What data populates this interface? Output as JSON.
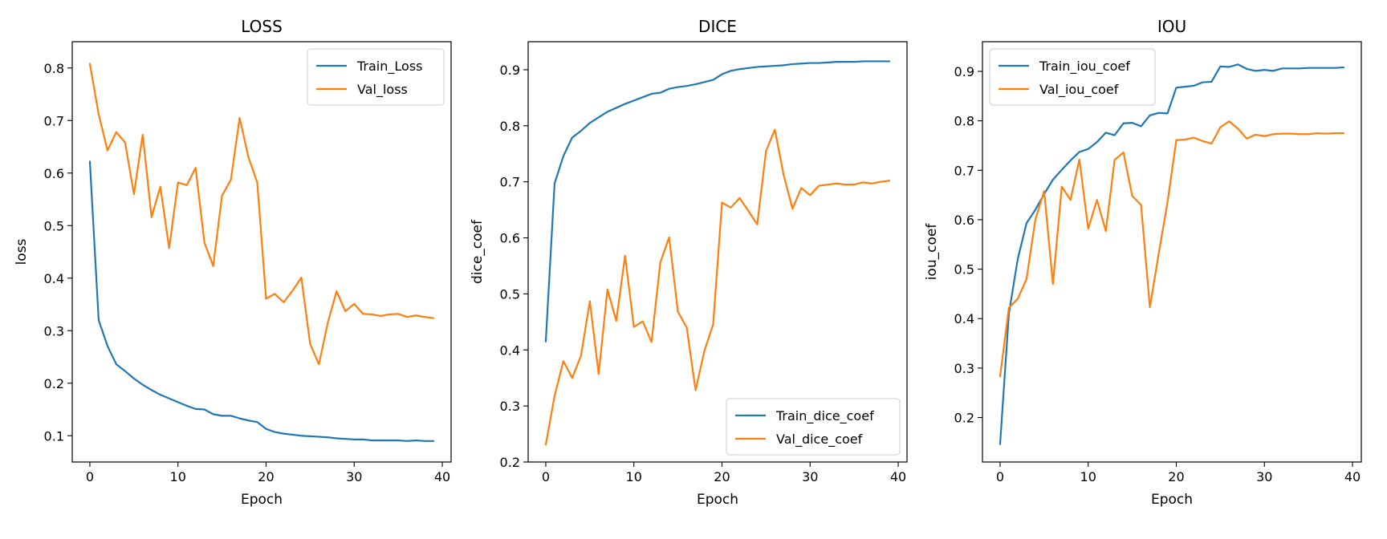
{
  "chart_data": [
    {
      "type": "line",
      "title": "LOSS",
      "xlabel": "Epoch",
      "ylabel": "loss",
      "xlim": [
        -2,
        41
      ],
      "ylim": [
        0.05,
        0.85
      ],
      "xticks": [
        0,
        10,
        20,
        30,
        40
      ],
      "yticks": [
        0.1,
        0.2,
        0.3,
        0.4,
        0.5,
        0.6,
        0.7,
        0.8
      ],
      "ytick_labels": [
        "0.1",
        "0.2",
        "0.3",
        "0.4",
        "0.5",
        "0.6",
        "0.7",
        "0.8"
      ],
      "legend_position": "top-right",
      "grid": false,
      "x": [
        0,
        1,
        2,
        3,
        4,
        5,
        6,
        7,
        8,
        9,
        10,
        11,
        12,
        13,
        14,
        15,
        16,
        17,
        18,
        19,
        20,
        21,
        22,
        23,
        24,
        25,
        26,
        27,
        28,
        29,
        30,
        31,
        32,
        33,
        34,
        35,
        36,
        37,
        38,
        39
      ],
      "series": [
        {
          "name": "Train_Loss",
          "color": "#1f77b4",
          "values": [
            0.622,
            0.32,
            0.271,
            0.236,
            0.223,
            0.209,
            0.197,
            0.187,
            0.178,
            0.171,
            0.164,
            0.157,
            0.151,
            0.15,
            0.141,
            0.138,
            0.138,
            0.133,
            0.129,
            0.126,
            0.113,
            0.107,
            0.104,
            0.102,
            0.1,
            0.099,
            0.098,
            0.097,
            0.095,
            0.094,
            0.093,
            0.093,
            0.091,
            0.091,
            0.091,
            0.091,
            0.09,
            0.091,
            0.09,
            0.09
          ]
        },
        {
          "name": "Val_loss",
          "color": "#ff7f0e",
          "values": [
            0.808,
            0.712,
            0.643,
            0.678,
            0.658,
            0.56,
            0.673,
            0.516,
            0.574,
            0.457,
            0.582,
            0.577,
            0.61,
            0.468,
            0.423,
            0.557,
            0.587,
            0.705,
            0.63,
            0.582,
            0.361,
            0.37,
            0.354,
            0.376,
            0.401,
            0.275,
            0.236,
            0.315,
            0.375,
            0.337,
            0.351,
            0.332,
            0.331,
            0.328,
            0.331,
            0.332,
            0.326,
            0.329,
            0.326,
            0.324
          ]
        }
      ]
    },
    {
      "type": "line",
      "title": "DICE",
      "xlabel": "Epoch",
      "ylabel": "dice_coef",
      "xlim": [
        -2,
        41
      ],
      "ylim": [
        0.2,
        0.95
      ],
      "xticks": [
        0,
        10,
        20,
        30,
        40
      ],
      "yticks": [
        0.2,
        0.3,
        0.4,
        0.5,
        0.6,
        0.7,
        0.8,
        0.9
      ],
      "ytick_labels": [
        "0.2",
        "0.3",
        "0.4",
        "0.5",
        "0.6",
        "0.7",
        "0.8",
        "0.9"
      ],
      "legend_position": "bottom-right",
      "grid": false,
      "x": [
        0,
        1,
        2,
        3,
        4,
        5,
        6,
        7,
        8,
        9,
        10,
        11,
        12,
        13,
        14,
        15,
        16,
        17,
        18,
        19,
        20,
        21,
        22,
        23,
        24,
        25,
        26,
        27,
        28,
        29,
        30,
        31,
        32,
        33,
        34,
        35,
        36,
        37,
        38,
        39
      ],
      "series": [
        {
          "name": "Train_dice_coef",
          "color": "#1f77b4",
          "values": [
            0.415,
            0.697,
            0.746,
            0.779,
            0.791,
            0.805,
            0.815,
            0.825,
            0.832,
            0.839,
            0.845,
            0.851,
            0.857,
            0.859,
            0.866,
            0.869,
            0.871,
            0.874,
            0.878,
            0.882,
            0.892,
            0.898,
            0.901,
            0.903,
            0.905,
            0.906,
            0.907,
            0.908,
            0.91,
            0.911,
            0.912,
            0.912,
            0.913,
            0.914,
            0.914,
            0.914,
            0.915,
            0.915,
            0.915,
            0.915
          ]
        },
        {
          "name": "Val_dice_coef",
          "color": "#ff7f0e",
          "values": [
            0.231,
            0.318,
            0.38,
            0.35,
            0.39,
            0.487,
            0.357,
            0.508,
            0.452,
            0.568,
            0.441,
            0.451,
            0.414,
            0.556,
            0.601,
            0.468,
            0.44,
            0.328,
            0.398,
            0.446,
            0.663,
            0.654,
            0.671,
            0.648,
            0.624,
            0.755,
            0.793,
            0.712,
            0.652,
            0.689,
            0.676,
            0.693,
            0.695,
            0.697,
            0.695,
            0.695,
            0.699,
            0.697,
            0.7,
            0.702
          ]
        }
      ]
    },
    {
      "type": "line",
      "title": "IOU",
      "xlabel": "Epoch",
      "ylabel": "iou_coef",
      "xlim": [
        -2,
        41
      ],
      "ylim": [
        0.11,
        0.96
      ],
      "xticks": [
        0,
        10,
        20,
        30,
        40
      ],
      "yticks": [
        0.2,
        0.3,
        0.4,
        0.5,
        0.6,
        0.7,
        0.8,
        0.9
      ],
      "ytick_labels": [
        "0.2",
        "0.3",
        "0.4",
        "0.5",
        "0.6",
        "0.7",
        "0.8",
        "0.9"
      ],
      "legend_position": "top-left",
      "grid": false,
      "x": [
        0,
        1,
        2,
        3,
        4,
        5,
        6,
        7,
        8,
        9,
        10,
        11,
        12,
        13,
        14,
        15,
        16,
        17,
        18,
        19,
        20,
        21,
        22,
        23,
        24,
        25,
        26,
        27,
        28,
        29,
        30,
        31,
        32,
        33,
        34,
        35,
        36,
        37,
        38,
        39
      ],
      "series": [
        {
          "name": "Train_iou_coef",
          "color": "#1f77b4",
          "values": [
            0.146,
            0.41,
            0.52,
            0.593,
            0.62,
            0.652,
            0.681,
            0.701,
            0.72,
            0.737,
            0.743,
            0.757,
            0.776,
            0.771,
            0.795,
            0.796,
            0.789,
            0.811,
            0.816,
            0.815,
            0.867,
            0.869,
            0.871,
            0.878,
            0.879,
            0.91,
            0.909,
            0.914,
            0.905,
            0.901,
            0.903,
            0.901,
            0.906,
            0.906,
            0.906,
            0.907,
            0.907,
            0.907,
            0.907,
            0.908
          ]
        },
        {
          "name": "Val_iou_coef",
          "color": "#ff7f0e",
          "values": [
            0.283,
            0.422,
            0.44,
            0.48,
            0.6,
            0.658,
            0.47,
            0.667,
            0.64,
            0.722,
            0.582,
            0.64,
            0.577,
            0.721,
            0.736,
            0.648,
            0.63,
            0.423,
            0.531,
            0.635,
            0.761,
            0.762,
            0.766,
            0.759,
            0.754,
            0.787,
            0.799,
            0.784,
            0.764,
            0.772,
            0.769,
            0.773,
            0.774,
            0.774,
            0.773,
            0.773,
            0.775,
            0.774,
            0.775,
            0.775
          ]
        }
      ]
    }
  ]
}
